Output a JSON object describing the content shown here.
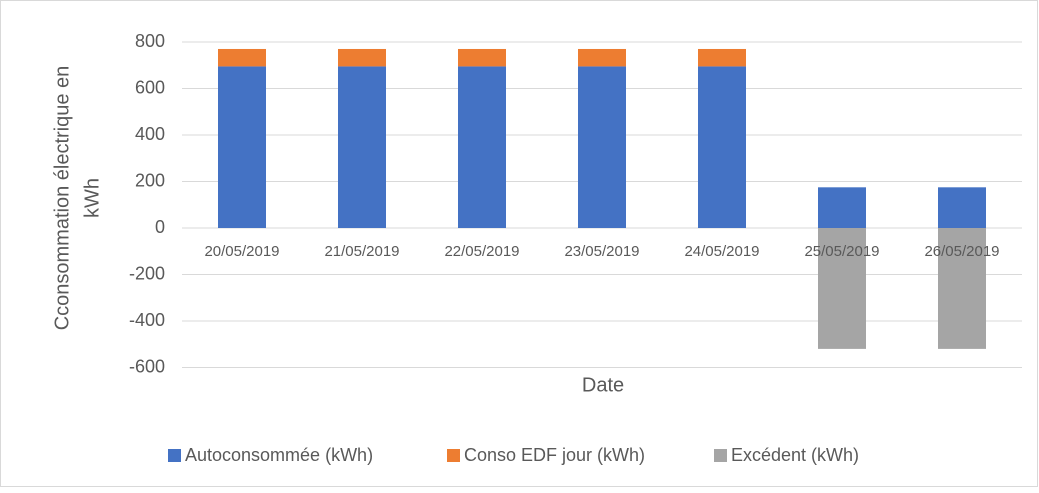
{
  "chart_data": {
    "type": "stacked_bar",
    "xlabel": "Date",
    "ylabel": [
      "Cconsommation électrique en",
      "kWh"
    ],
    "categories": [
      "20/05/2019",
      "21/05/2019",
      "22/05/2019",
      "23/05/2019",
      "24/05/2019",
      "25/05/2019",
      "26/05/2019"
    ],
    "series": [
      {
        "name": "Autoconsommée (kWh)",
        "color": "#4472c4",
        "values": [
          695,
          695,
          695,
          695,
          695,
          175,
          175
        ]
      },
      {
        "name": "Conso EDF jour (kWh)",
        "color": "#ed7d31",
        "values": [
          75,
          75,
          75,
          75,
          75,
          0,
          0
        ]
      },
      {
        "name": "Excédent (kWh)",
        "color": "#a5a5a5",
        "values": [
          0,
          0,
          0,
          0,
          0,
          -520,
          -520
        ]
      }
    ],
    "ylim": [
      -600,
      800
    ],
    "yticks": [
      -600,
      -400,
      -200,
      0,
      200,
      400,
      600,
      800
    ],
    "grid": true,
    "legend": "bottom"
  }
}
